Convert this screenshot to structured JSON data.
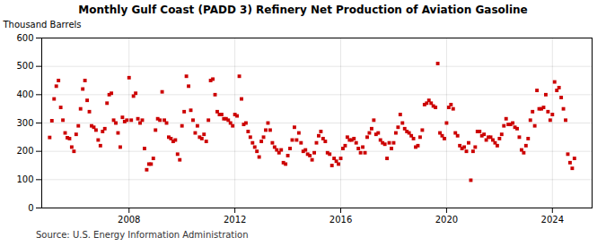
{
  "chart_data": {
    "type": "scatter",
    "title": "Monthly Gulf Coast (PADD 3) Refinery Net Production of Aviation Gasoline",
    "ylabel": "Thousand Barrels",
    "annotations": [
      "Source: U.S. Energy Information Administration"
    ],
    "color": "#cc0000",
    "marker": "square",
    "grid": true,
    "xlim": [
      2004.7,
      2025.5
    ],
    "xticks": [
      2008,
      2012,
      2016,
      2020,
      2024
    ],
    "ylim": [
      0,
      600
    ],
    "yticks": [
      0,
      100,
      200,
      300,
      400,
      500,
      600
    ],
    "x": [
      2005.0,
      2005.083,
      2005.167,
      2005.25,
      2005.333,
      2005.417,
      2005.5,
      2005.583,
      2005.667,
      2005.75,
      2005.833,
      2005.917,
      2006.0,
      2006.083,
      2006.167,
      2006.25,
      2006.333,
      2006.417,
      2006.5,
      2006.583,
      2006.667,
      2006.75,
      2006.833,
      2006.917,
      2007.0,
      2007.083,
      2007.167,
      2007.25,
      2007.333,
      2007.417,
      2007.5,
      2007.583,
      2007.667,
      2007.75,
      2007.833,
      2007.917,
      2008.0,
      2008.083,
      2008.167,
      2008.25,
      2008.333,
      2008.417,
      2008.5,
      2008.583,
      2008.667,
      2008.75,
      2008.833,
      2008.917,
      2009.0,
      2009.083,
      2009.167,
      2009.25,
      2009.333,
      2009.417,
      2009.5,
      2009.583,
      2009.667,
      2009.75,
      2009.833,
      2009.917,
      2010.0,
      2010.083,
      2010.167,
      2010.25,
      2010.333,
      2010.417,
      2010.5,
      2010.583,
      2010.667,
      2010.75,
      2010.833,
      2010.917,
      2011.0,
      2011.083,
      2011.167,
      2011.25,
      2011.333,
      2011.417,
      2011.5,
      2011.583,
      2011.667,
      2011.75,
      2011.833,
      2011.917,
      2012.0,
      2012.083,
      2012.167,
      2012.25,
      2012.333,
      2012.417,
      2012.5,
      2012.583,
      2012.667,
      2012.75,
      2012.833,
      2012.917,
      2013.0,
      2013.083,
      2013.167,
      2013.25,
      2013.333,
      2013.417,
      2013.5,
      2013.583,
      2013.667,
      2013.75,
      2013.833,
      2013.917,
      2014.0,
      2014.083,
      2014.167,
      2014.25,
      2014.333,
      2014.417,
      2014.5,
      2014.583,
      2014.667,
      2014.75,
      2014.833,
      2014.917,
      2015.0,
      2015.083,
      2015.167,
      2015.25,
      2015.333,
      2015.417,
      2015.5,
      2015.583,
      2015.667,
      2015.75,
      2015.833,
      2015.917,
      2016.0,
      2016.083,
      2016.167,
      2016.25,
      2016.333,
      2016.417,
      2016.5,
      2016.583,
      2016.667,
      2016.75,
      2016.833,
      2016.917,
      2017.0,
      2017.083,
      2017.167,
      2017.25,
      2017.333,
      2017.417,
      2017.5,
      2017.583,
      2017.667,
      2017.75,
      2017.833,
      2017.917,
      2018.0,
      2018.083,
      2018.167,
      2018.25,
      2018.333,
      2018.417,
      2018.5,
      2018.583,
      2018.667,
      2018.75,
      2018.833,
      2018.917,
      2019.0,
      2019.083,
      2019.167,
      2019.25,
      2019.333,
      2019.417,
      2019.5,
      2019.583,
      2019.667,
      2019.75,
      2019.833,
      2019.917,
      2020.0,
      2020.083,
      2020.167,
      2020.25,
      2020.333,
      2020.417,
      2020.5,
      2020.583,
      2020.667,
      2020.75,
      2020.833,
      2020.917,
      2021.0,
      2021.083,
      2021.167,
      2021.25,
      2021.333,
      2021.417,
      2021.5,
      2021.583,
      2021.667,
      2021.75,
      2021.833,
      2021.917,
      2022.0,
      2022.083,
      2022.167,
      2022.25,
      2022.333,
      2022.417,
      2022.5,
      2022.583,
      2022.667,
      2022.75,
      2022.833,
      2022.917,
      2023.0,
      2023.083,
      2023.167,
      2023.25,
      2023.333,
      2023.417,
      2023.5,
      2023.583,
      2023.667,
      2023.75,
      2023.833,
      2023.917,
      2024.0,
      2024.083,
      2024.167,
      2024.25,
      2024.333,
      2024.417,
      2024.5,
      2024.583,
      2024.667,
      2024.75,
      2024.833
    ],
    "values": [
      249,
      308,
      385,
      430,
      450,
      355,
      310,
      265,
      248,
      245,
      215,
      200,
      260,
      290,
      350,
      420,
      450,
      380,
      340,
      290,
      285,
      275,
      240,
      220,
      270,
      280,
      370,
      400,
      405,
      310,
      300,
      265,
      215,
      320,
      305,
      310,
      460,
      310,
      395,
      405,
      315,
      300,
      310,
      210,
      135,
      155,
      155,
      175,
      275,
      315,
      310,
      410,
      310,
      300,
      250,
      245,
      235,
      240,
      190,
      170,
      290,
      340,
      465,
      430,
      345,
      310,
      265,
      290,
      250,
      245,
      260,
      235,
      310,
      450,
      455,
      400,
      340,
      330,
      330,
      315,
      315,
      310,
      300,
      290,
      330,
      325,
      465,
      385,
      295,
      300,
      270,
      250,
      230,
      215,
      200,
      180,
      235,
      250,
      275,
      300,
      275,
      230,
      215,
      205,
      195,
      205,
      160,
      155,
      185,
      210,
      240,
      285,
      240,
      265,
      230,
      200,
      205,
      190,
      185,
      170,
      195,
      230,
      255,
      270,
      245,
      235,
      195,
      190,
      150,
      175,
      165,
      155,
      175,
      210,
      220,
      250,
      240,
      240,
      245,
      230,
      210,
      195,
      215,
      195,
      250,
      265,
      280,
      310,
      260,
      265,
      240,
      230,
      225,
      175,
      230,
      210,
      230,
      265,
      285,
      330,
      300,
      280,
      270,
      265,
      255,
      245,
      215,
      220,
      250,
      275,
      365,
      370,
      380,
      370,
      360,
      355,
      510,
      265,
      255,
      245,
      300,
      355,
      365,
      350,
      265,
      255,
      220,
      210,
      215,
      200,
      230,
      98,
      200,
      215,
      270,
      270,
      255,
      260,
      240,
      250,
      250,
      240,
      230,
      220,
      245,
      260,
      290,
      315,
      295,
      295,
      300,
      285,
      280,
      250,
      205,
      195,
      220,
      245,
      310,
      340,
      290,
      415,
      350,
      350,
      355,
      400,
      340,
      310,
      330,
      445,
      415,
      425,
      390,
      350,
      310,
      190,
      160,
      140,
      175
    ]
  }
}
